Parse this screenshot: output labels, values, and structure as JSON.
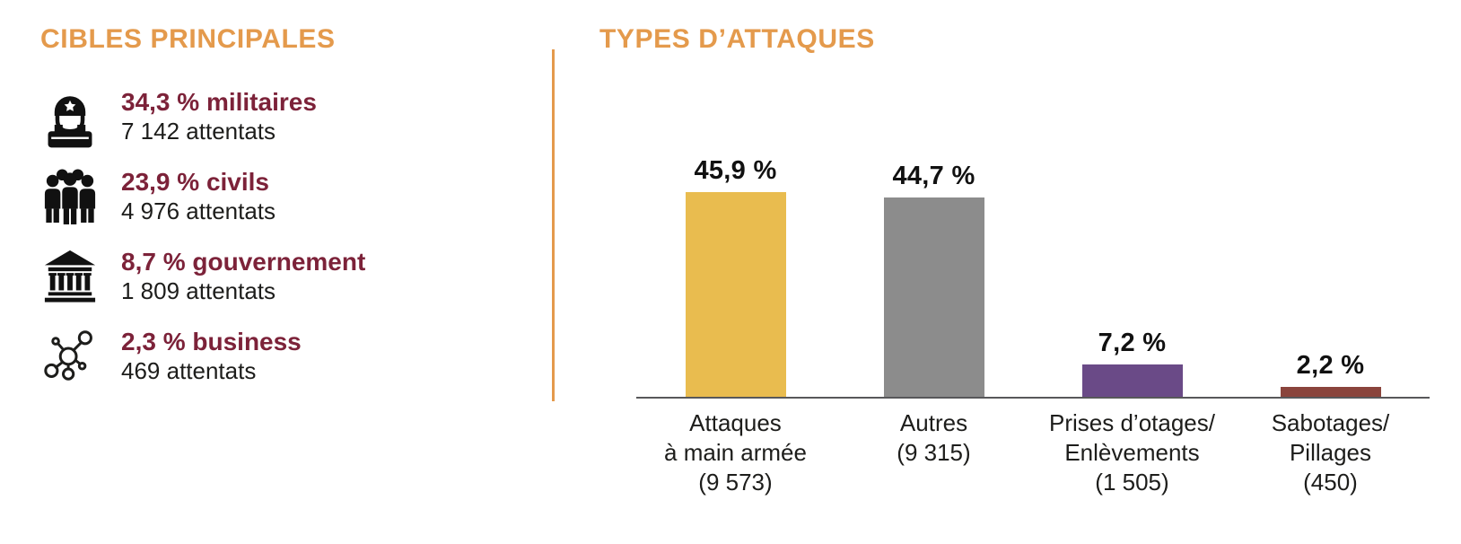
{
  "targets": {
    "title": "CIBLES PRINCIPALES",
    "items": [
      {
        "icon": "soldier-icon",
        "headline": "34,3 % militaires",
        "subline": "7 142 attentats"
      },
      {
        "icon": "people-group-icon",
        "headline": "23,9 % civils",
        "subline": "4 976 attentats"
      },
      {
        "icon": "bank-icon",
        "headline": "8,7 % gouvernement",
        "subline": "1 809 attentats"
      },
      {
        "icon": "network-icon",
        "headline": "2,3 % business",
        "subline": "469 attentats"
      }
    ]
  },
  "attacks": {
    "title": "TYPES D’ATTAQUES"
  },
  "chart_data": {
    "type": "bar",
    "title": "TYPES D’ATTAQUES",
    "categories": [
      "Attaques\nà main armée\n(9 573)",
      "Autres\n(9 315)",
      "Prises d’otages/\nEnlèvements\n(1 505)",
      "Sabotages/\nPillages\n(450)"
    ],
    "values": [
      45.9,
      44.7,
      7.2,
      2.2
    ],
    "counts": [
      9573,
      9315,
      1505,
      450
    ],
    "value_labels": [
      "45,9 %",
      "44,7 %",
      "7,2 %",
      "2,2 %"
    ],
    "bar_colors": [
      "#e9bc4f",
      "#8c8c8c",
      "#6a4a87",
      "#8a443c"
    ],
    "xlabel": "",
    "ylabel": "",
    "ylim": [
      0,
      50
    ],
    "grid": false,
    "legend": null
  },
  "colors": {
    "accent_orange": "#e49a4c",
    "maroon": "#7c2239",
    "text_dark": "#1d1d1b",
    "axis_gray": "#58585a"
  }
}
